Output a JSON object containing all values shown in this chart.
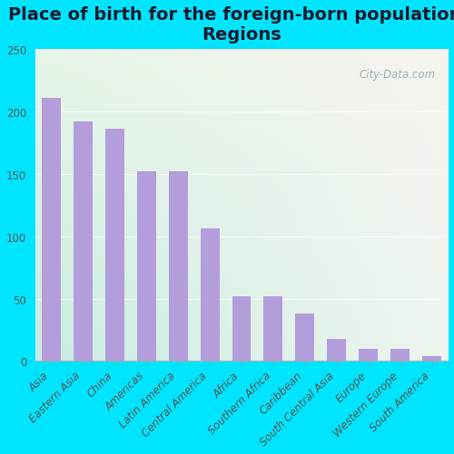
{
  "title": "Place of birth for the foreign-born population -\nRegions",
  "categories": [
    "Asia",
    "Eastern Asia",
    "China",
    "Americas",
    "Latin America",
    "Central America",
    "Africa",
    "Southern Africa",
    "Caribbean",
    "South Central Asia",
    "Europe",
    "Western Europe",
    "South America"
  ],
  "values": [
    211,
    192,
    186,
    152,
    152,
    106,
    52,
    52,
    38,
    18,
    10,
    10,
    4
  ],
  "bar_color": "#b39ddb",
  "background_color": "#00e5ff",
  "plot_bg_topleft": "#e8f5e9",
  "plot_bg_topright": "#f5f5ee",
  "plot_bg_bottomleft": "#c8ede0",
  "plot_bg_bottomright": "#eef5f0",
  "ylim": [
    0,
    250
  ],
  "yticks": [
    0,
    50,
    100,
    150,
    200,
    250
  ],
  "title_fontsize": 14,
  "tick_label_fontsize": 8.5,
  "watermark_text": "City-Data.com",
  "tick_color": "#555555",
  "title_color": "#1a1a2e"
}
